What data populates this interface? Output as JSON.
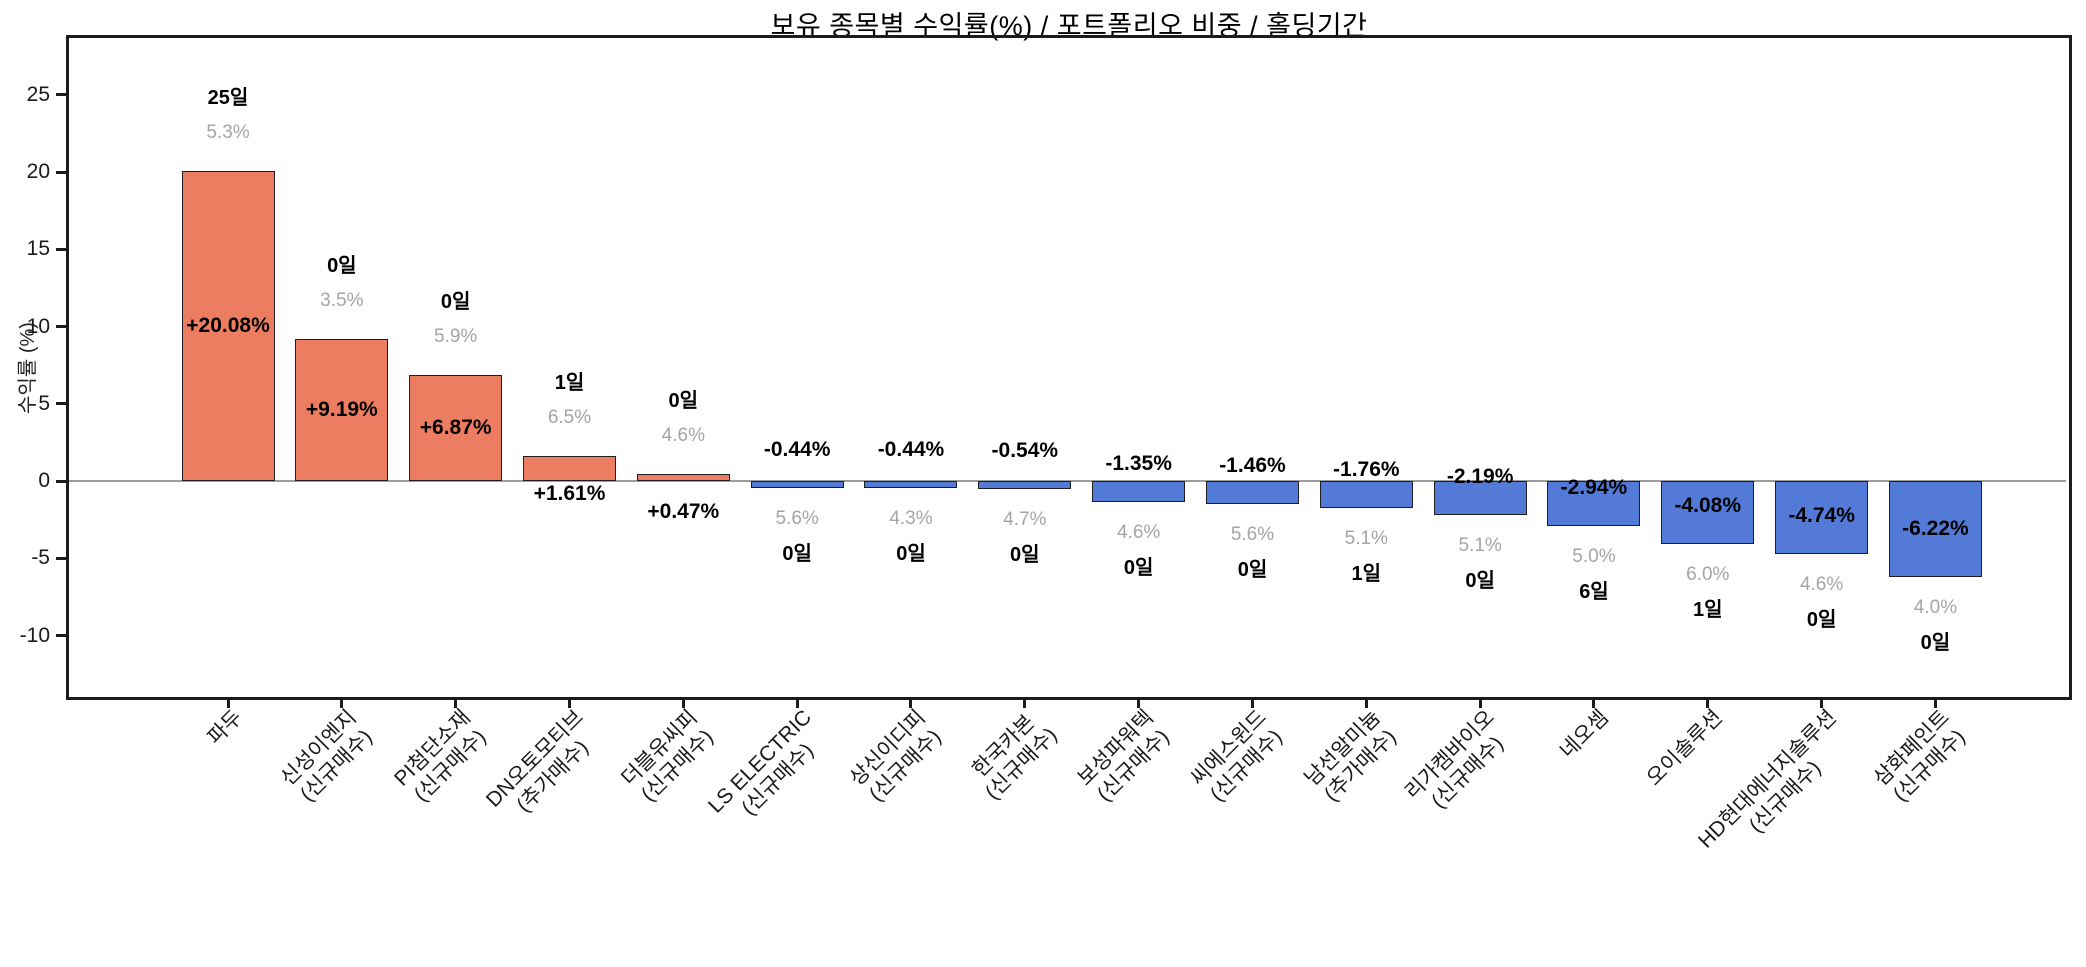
{
  "chart_data": {
    "type": "bar",
    "title": "보유 종목별 수익률(%) / 포트폴리오 비중 / 홀딩기간",
    "ylabel": "수익률 (%)",
    "ylim": [
      -13.9,
      28.6
    ],
    "yticks": [
      25,
      20,
      15,
      10,
      5,
      0,
      -5,
      -10
    ],
    "grid": false,
    "legend": "none",
    "colors": {
      "positive_bar": "#ed7d60",
      "negative_bar": "#527ad6",
      "bar_edge": "#1f1f1f",
      "zero_line": "#9e9e9e",
      "weight_text": "#a5a5a5",
      "value_text": "#000000"
    },
    "categories": [
      "파두",
      "신성이엔지 (신규매수)",
      "PI첨단소재 (신규매수)",
      "DN오토모티브 (추가매수)",
      "더블유씨피 (신규매수)",
      "LS ELECTRIC (신규매수)",
      "상신이디피 (신규매수)",
      "한국카본 (신규매수)",
      "보성파워텍 (신규매수)",
      "씨에스윈드 (신규매수)",
      "남선알미늄 (추가매수)",
      "리가켐바이오 (신규매수)",
      "네오셈",
      "오이솔루션",
      "HD현대에너지솔루션 (신규매수)",
      "삼화페인트 (신규매수)"
    ],
    "bars": [
      {
        "name": "파두",
        "tag": "",
        "return_pct": 20.08,
        "return_label": "+20.08%",
        "weight_pct": 5.3,
        "weight_label": "5.3%",
        "holding_days": 25,
        "days_label": "25일"
      },
      {
        "name": "신성이엔지",
        "tag": "(신규매수)",
        "return_pct": 9.19,
        "return_label": "+9.19%",
        "weight_pct": 3.5,
        "weight_label": "3.5%",
        "holding_days": 0,
        "days_label": "0일"
      },
      {
        "name": "PI첨단소재",
        "tag": "(신규매수)",
        "return_pct": 6.87,
        "return_label": "+6.87%",
        "weight_pct": 5.9,
        "weight_label": "5.9%",
        "holding_days": 0,
        "days_label": "0일"
      },
      {
        "name": "DN오토모티브",
        "tag": "(추가매수)",
        "return_pct": 1.61,
        "return_label": "+1.61%",
        "weight_pct": 6.5,
        "weight_label": "6.5%",
        "holding_days": 1,
        "days_label": "1일"
      },
      {
        "name": "더블유씨피",
        "tag": "(신규매수)",
        "return_pct": 0.47,
        "return_label": "+0.47%",
        "weight_pct": 4.6,
        "weight_label": "4.6%",
        "holding_days": 0,
        "days_label": "0일"
      },
      {
        "name": "LS ELECTRIC",
        "tag": "(신규매수)",
        "return_pct": -0.44,
        "return_label": "-0.44%",
        "weight_pct": 5.6,
        "weight_label": "5.6%",
        "holding_days": 0,
        "days_label": "0일"
      },
      {
        "name": "상신이디피",
        "tag": "(신규매수)",
        "return_pct": -0.44,
        "return_label": "-0.44%",
        "weight_pct": 4.3,
        "weight_label": "4.3%",
        "holding_days": 0,
        "days_label": "0일"
      },
      {
        "name": "한국카본",
        "tag": "(신규매수)",
        "return_pct": -0.54,
        "return_label": "-0.54%",
        "weight_pct": 4.7,
        "weight_label": "4.7%",
        "holding_days": 0,
        "days_label": "0일"
      },
      {
        "name": "보성파워텍",
        "tag": "(신규매수)",
        "return_pct": -1.35,
        "return_label": "-1.35%",
        "weight_pct": 4.6,
        "weight_label": "4.6%",
        "holding_days": 0,
        "days_label": "0일"
      },
      {
        "name": "씨에스윈드",
        "tag": "(신규매수)",
        "return_pct": -1.46,
        "return_label": "-1.46%",
        "weight_pct": 5.6,
        "weight_label": "5.6%",
        "holding_days": 0,
        "days_label": "0일"
      },
      {
        "name": "남선알미늄",
        "tag": "(추가매수)",
        "return_pct": -1.76,
        "return_label": "-1.76%",
        "weight_pct": 5.1,
        "weight_label": "5.1%",
        "holding_days": 1,
        "days_label": "1일"
      },
      {
        "name": "리가켐바이오",
        "tag": "(신규매수)",
        "return_pct": -2.19,
        "return_label": "-2.19%",
        "weight_pct": 5.1,
        "weight_label": "5.1%",
        "holding_days": 0,
        "days_label": "0일"
      },
      {
        "name": "네오셈",
        "tag": "",
        "return_pct": -2.94,
        "return_label": "-2.94%",
        "weight_pct": 5.0,
        "weight_label": "5.0%",
        "holding_days": 6,
        "days_label": "6일"
      },
      {
        "name": "오이솔루션",
        "tag": "",
        "return_pct": -4.08,
        "return_label": "-4.08%",
        "weight_pct": 6.0,
        "weight_label": "6.0%",
        "holding_days": 1,
        "days_label": "1일"
      },
      {
        "name": "HD현대에너지솔루션",
        "tag": "(신규매수)",
        "return_pct": -4.74,
        "return_label": "-4.74%",
        "weight_pct": 4.6,
        "weight_label": "4.6%",
        "holding_days": 0,
        "days_label": "0일"
      },
      {
        "name": "삼화페인트",
        "tag": "(신규매수)",
        "return_pct": -6.22,
        "return_label": "-6.22%",
        "weight_pct": 4.0,
        "weight_label": "4.0%",
        "holding_days": 0,
        "days_label": "0일"
      }
    ]
  }
}
